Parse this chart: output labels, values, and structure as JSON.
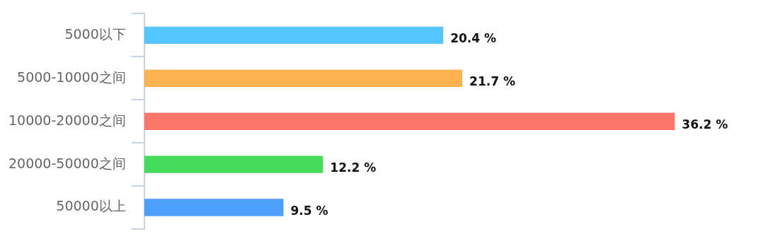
{
  "chart_data": {
    "type": "bar",
    "orientation": "horizontal",
    "categories": [
      "5000以下",
      "5000-10000之间",
      "10000-20000之间",
      "20000-50000之间",
      "50000以上"
    ],
    "values": [
      20.4,
      21.7,
      36.2,
      12.2,
      9.5
    ],
    "colors": [
      "#55c6fd",
      "#ffb251",
      "#fe766a",
      "#44dc5a",
      "#4d9ffc"
    ],
    "value_labels": [
      "20.4 %",
      "21.7 %",
      "36.2 %",
      "12.2 %",
      "9.5 %"
    ]
  }
}
